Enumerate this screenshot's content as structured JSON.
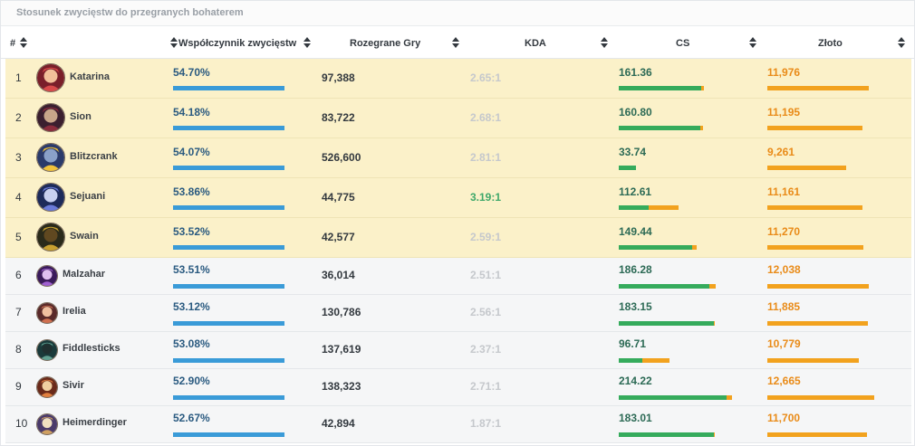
{
  "panel_title": "Stosunek zwycięstw do przegranych bohaterem",
  "columns": {
    "rank": "#",
    "winrate": "Współczynnik zwycięstw",
    "games": "Rozegrane Gry",
    "kda": "KDA",
    "cs": "CS",
    "gold": "Złoto"
  },
  "colors": {
    "highlight_row": "#fbf1c9",
    "normal_row": "#f5f6f7",
    "winrate_bar": "#3a9bd8",
    "cs_bar": "#35ab5c",
    "gold_bar": "#f2a21e",
    "kda_good": "#3ea86a"
  },
  "rows": [
    {
      "rank": "1",
      "name": "Katarina",
      "icon": "katarina-portrait-icon",
      "winrate": "54.70%",
      "games": "97,388",
      "kda": "2.65:1",
      "kda_good": false,
      "cs": "161.36",
      "cs_fill": 0.73,
      "cs_total": 0.75,
      "gold": "11,976",
      "gold_fill": 0.92,
      "highlight": true
    },
    {
      "rank": "2",
      "name": "Sion",
      "icon": "sion-portrait-icon",
      "winrate": "54.18%",
      "games": "83,722",
      "kda": "2.68:1",
      "kda_good": false,
      "cs": "160.80",
      "cs_fill": 0.72,
      "cs_total": 0.74,
      "gold": "11,195",
      "gold_fill": 0.86,
      "highlight": true
    },
    {
      "rank": "3",
      "name": "Blitzcrank",
      "icon": "blitzcrank-portrait-icon",
      "winrate": "54.07%",
      "games": "526,600",
      "kda": "2.81:1",
      "kda_good": false,
      "cs": "33.74",
      "cs_fill": 0.15,
      "cs_total": 0.15,
      "gold": "9,261",
      "gold_fill": 0.71,
      "highlight": true
    },
    {
      "rank": "4",
      "name": "Sejuani",
      "icon": "sejuani-portrait-icon",
      "winrate": "53.86%",
      "games": "44,775",
      "kda": "3.19:1",
      "kda_good": true,
      "cs": "112.61",
      "cs_fill": 0.26,
      "cs_total": 0.52,
      "gold": "11,161",
      "gold_fill": 0.86,
      "highlight": true
    },
    {
      "rank": "5",
      "name": "Swain",
      "icon": "swain-portrait-icon",
      "winrate": "53.52%",
      "games": "42,577",
      "kda": "2.59:1",
      "kda_good": false,
      "cs": "149.44",
      "cs_fill": 0.65,
      "cs_total": 0.69,
      "gold": "11,270",
      "gold_fill": 0.87,
      "highlight": true
    },
    {
      "rank": "6",
      "name": "Malzahar",
      "icon": "malzahar-portrait-icon",
      "winrate": "53.51%",
      "games": "36,014",
      "kda": "2.51:1",
      "kda_good": false,
      "cs": "186.28",
      "cs_fill": 0.8,
      "cs_total": 0.86,
      "gold": "12,038",
      "gold_fill": 0.92,
      "highlight": false
    },
    {
      "rank": "7",
      "name": "Irelia",
      "icon": "irelia-portrait-icon",
      "winrate": "53.12%",
      "games": "130,786",
      "kda": "2.56:1",
      "kda_good": false,
      "cs": "183.15",
      "cs_fill": 0.84,
      "cs_total": 0.85,
      "gold": "11,885",
      "gold_fill": 0.91,
      "highlight": false
    },
    {
      "rank": "8",
      "name": "Fiddlesticks",
      "icon": "fiddlesticks-portrait-icon",
      "winrate": "53.08%",
      "games": "137,619",
      "kda": "2.37:1",
      "kda_good": false,
      "cs": "96.71",
      "cs_fill": 0.21,
      "cs_total": 0.45,
      "gold": "10,779",
      "gold_fill": 0.83,
      "highlight": false
    },
    {
      "rank": "9",
      "name": "Sivir",
      "icon": "sivir-portrait-icon",
      "winrate": "52.90%",
      "games": "138,323",
      "kda": "2.71:1",
      "kda_good": false,
      "cs": "214.22",
      "cs_fill": 0.95,
      "cs_total": 1.0,
      "gold": "12,665",
      "gold_fill": 0.97,
      "highlight": false
    },
    {
      "rank": "10",
      "name": "Heimerdinger",
      "icon": "heimerdinger-portrait-icon",
      "winrate": "52.67%",
      "games": "42,894",
      "kda": "1.87:1",
      "kda_good": false,
      "cs": "183.01",
      "cs_fill": 0.84,
      "cs_total": 0.85,
      "gold": "11,700",
      "gold_fill": 0.9,
      "highlight": false
    }
  ]
}
